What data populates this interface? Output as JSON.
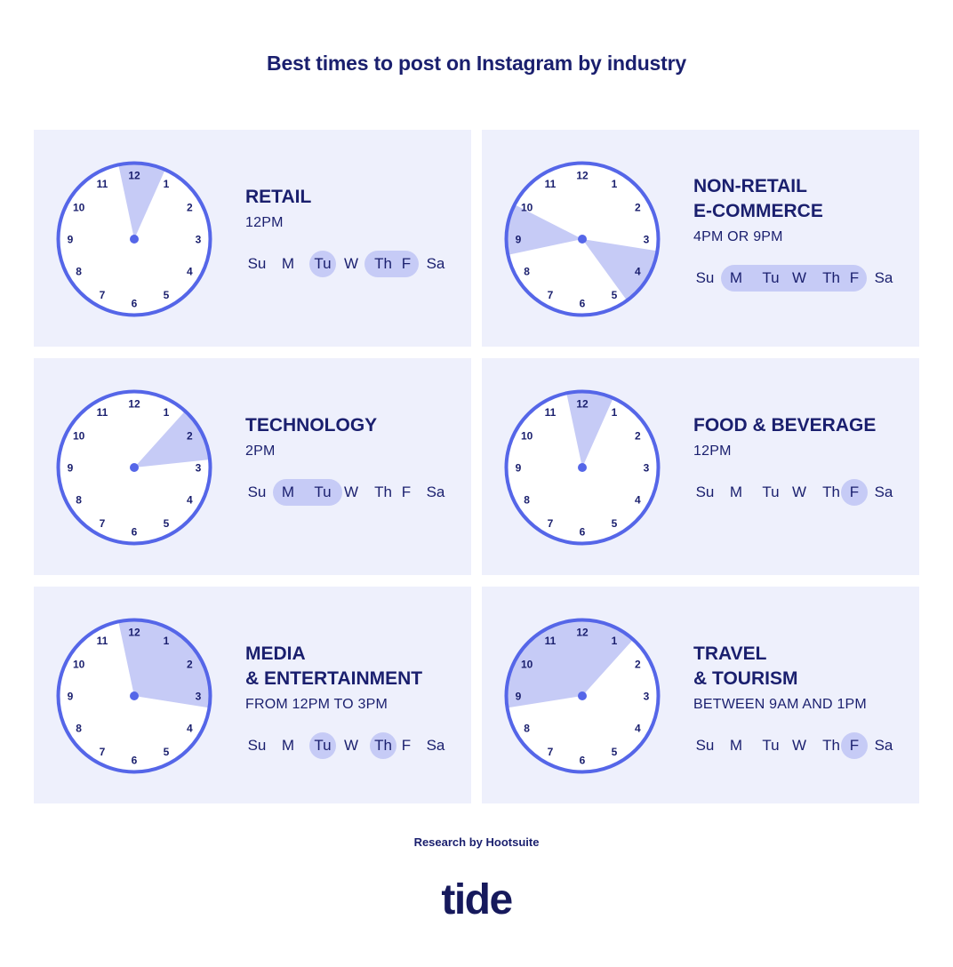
{
  "title": "Best times to post on Instagram by industry",
  "source": "Research by Hootsuite",
  "logo": "tide",
  "colors": {
    "card_bg": "#eef0fc",
    "accent": "#5566e8",
    "highlight": "#c6cbf6",
    "text": "#1a1f6e"
  },
  "day_labels": [
    "Su",
    "M",
    "Tu",
    "W",
    "Th",
    "F",
    "Sa"
  ],
  "industries": [
    {
      "heading": "RETAIL",
      "time": "12PM",
      "clock_hand_hour": 12,
      "clock_wedges": [
        {
          "from": 11.6,
          "to": 12.8
        }
      ],
      "highlight_days": [
        [
          2,
          2
        ],
        [
          4,
          5
        ]
      ]
    },
    {
      "heading": "NON-RETAIL\nE-COMMERCE",
      "time": "4PM OR 9PM",
      "clock_hand_hour": 12,
      "clock_wedges": [
        {
          "from": 8.6,
          "to": 9.9
        },
        {
          "from": 3.3,
          "to": 4.8
        }
      ],
      "highlight_days": [
        [
          1,
          5
        ]
      ]
    },
    {
      "heading": "TECHNOLOGY",
      "time": "2PM",
      "clock_hand_hour": 2,
      "clock_wedges": [
        {
          "from": 1.4,
          "to": 2.8
        }
      ],
      "highlight_days": [
        [
          1,
          2
        ]
      ]
    },
    {
      "heading": "FOOD & BEVERAGE",
      "time": "12PM",
      "clock_hand_hour": 12,
      "clock_wedges": [
        {
          "from": 11.6,
          "to": 12.8
        }
      ],
      "highlight_days": [
        [
          5,
          5
        ]
      ]
    },
    {
      "heading": "MEDIA\n& ENTERTAINMENT",
      "time": "FROM 12PM TO 3PM",
      "clock_hand_hour": 12,
      "clock_wedges": [
        {
          "from": 11.6,
          "to": 3.3
        }
      ],
      "highlight_days": [
        [
          2,
          2
        ],
        [
          4,
          4
        ]
      ]
    },
    {
      "heading": "TRAVEL\n& TOURISM",
      "time": "BETWEEN 9AM AND 1PM",
      "clock_hand_hour": 12,
      "clock_wedges": [
        {
          "from": 8.7,
          "to": 1.4
        }
      ],
      "highlight_days": [
        [
          5,
          5
        ]
      ]
    }
  ]
}
